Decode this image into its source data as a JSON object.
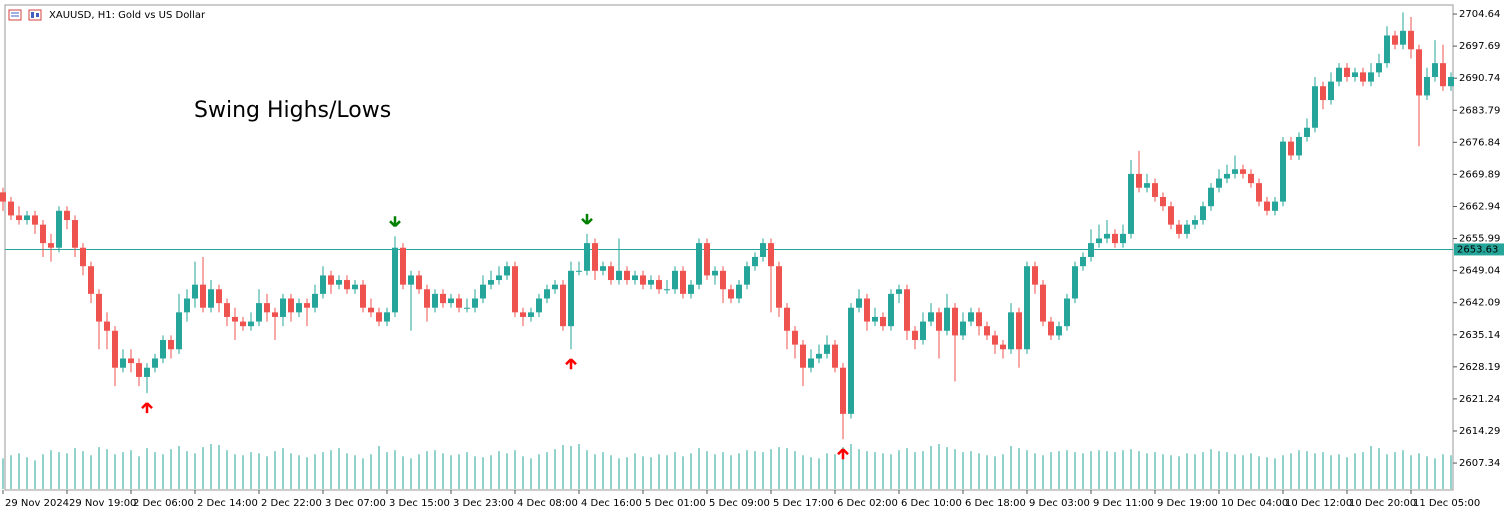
{
  "chart_data": {
    "type": "candlestick",
    "title": "XAUUSD, H1:  Gold vs US Dollar",
    "annotation": "Swing Highs/Lows",
    "bull_color": "#26a69a",
    "bear_color": "#ef5350",
    "volume_color": "#26a69a",
    "swing_high_color": "#008000",
    "swing_low_color": "#ff0000",
    "annotation_color": "#1414ff",
    "price_line": {
      "value": 2653.63,
      "label": "2653.63",
      "color": "#26a69a"
    },
    "ylim": [
      2601.5,
      2706.6
    ],
    "yticks": [
      2704.64,
      2697.69,
      2690.74,
      2683.79,
      2676.84,
      2669.89,
      2662.94,
      2655.99,
      2649.04,
      2642.09,
      2635.14,
      2628.19,
      2621.24,
      2614.29,
      2607.34
    ],
    "categories": [
      "29 Nov 2024",
      null,
      null,
      null,
      null,
      null,
      null,
      null,
      "29 Nov 19:00",
      null,
      null,
      null,
      null,
      null,
      null,
      null,
      "2 Dec 06:00",
      null,
      null,
      null,
      null,
      null,
      null,
      null,
      "2 Dec 14:00",
      null,
      null,
      null,
      null,
      null,
      null,
      null,
      "2 Dec 22:00",
      null,
      null,
      null,
      null,
      null,
      null,
      null,
      "3 Dec 07:00",
      null,
      null,
      null,
      null,
      null,
      null,
      null,
      "3 Dec 15:00",
      null,
      null,
      null,
      null,
      null,
      null,
      null,
      "3 Dec 23:00",
      null,
      null,
      null,
      null,
      null,
      null,
      null,
      "4 Dec 08:00",
      null,
      null,
      null,
      null,
      null,
      null,
      null,
      "4 Dec 16:00",
      null,
      null,
      null,
      null,
      null,
      null,
      null,
      "5 Dec 01:00",
      null,
      null,
      null,
      null,
      null,
      null,
      null,
      "5 Dec 09:00",
      null,
      null,
      null,
      null,
      null,
      null,
      null,
      "5 Dec 17:00",
      null,
      null,
      null,
      null,
      null,
      null,
      null,
      "6 Dec 02:00",
      null,
      null,
      null,
      null,
      null,
      null,
      null,
      "6 Dec 10:00",
      null,
      null,
      null,
      null,
      null,
      null,
      null,
      "6 Dec 18:00",
      null,
      null,
      null,
      null,
      null,
      null,
      null,
      "9 Dec 03:00",
      null,
      null,
      null,
      null,
      null,
      null,
      null,
      "9 Dec 11:00",
      null,
      null,
      null,
      null,
      null,
      null,
      null,
      "9 Dec 19:00",
      null,
      null,
      null,
      null,
      null,
      null,
      null,
      "10 Dec 04:00",
      null,
      null,
      null,
      null,
      null,
      null,
      null,
      "10 Dec 12:00",
      null,
      null,
      null,
      null,
      null,
      null,
      null,
      "10 Dec 20:00",
      null,
      null,
      null,
      null,
      null,
      null,
      null,
      "11 Dec 05:00",
      null,
      null,
      null,
      null,
      null
    ],
    "open": [
      2666,
      2664,
      2661,
      2660,
      2661,
      2659,
      2655,
      2654,
      2662,
      2660,
      2654,
      2650,
      2644,
      2638,
      2636,
      2628,
      2630,
      2629,
      2626,
      2628,
      2630,
      2634,
      2632,
      2640,
      2643,
      2646,
      2641,
      2645,
      2642,
      2639,
      2638,
      2637,
      2638,
      2642,
      2640,
      2639,
      2643,
      2640,
      2642,
      2641,
      2644,
      2648,
      2646,
      2647,
      2645,
      2646,
      2641,
      2640,
      2638,
      2640,
      2654,
      2646,
      2648,
      2645,
      2641,
      2644,
      2642,
      2643,
      2641,
      2641,
      2643,
      2646,
      2647,
      2648,
      2650,
      2640,
      2639,
      2640,
      2643,
      2645,
      2646,
      2637,
      2649,
      2649,
      2655,
      2649,
      2650,
      2647,
      2649,
      2647,
      2648,
      2646,
      2647,
      2645,
      2645,
      2649,
      2644,
      2646,
      2655,
      2648,
      2649,
      2645,
      2643,
      2646,
      2650,
      2652,
      2655,
      2650,
      2641,
      2636,
      2633,
      2628,
      2630,
      2631,
      2633,
      2628,
      2618,
      2641,
      2643,
      2638,
      2639,
      2637,
      2644,
      2645,
      2636,
      2634,
      2638,
      2640,
      2636,
      2641,
      2635,
      2638,
      2640,
      2637,
      2635,
      2633,
      2632,
      2640,
      2632,
      2650,
      2646,
      2638,
      2635,
      2637,
      2643,
      2650,
      2652,
      2655,
      2656,
      2657,
      2655,
      2657,
      2670,
      2667,
      2668,
      2665,
      2663,
      2659,
      2657,
      2659,
      2660,
      2663,
      2667,
      2669,
      2670,
      2671,
      2670,
      2668,
      2664,
      2662,
      2664,
      2677,
      2674,
      2678,
      2680,
      2689,
      2686,
      2690,
      2693,
      2691,
      2692,
      2690,
      2692,
      2694,
      2700,
      2698,
      2701,
      2697,
      2687,
      2691,
      2694,
      2689
    ],
    "high": [
      2667,
      2665,
      2663,
      2662,
      2662,
      2660,
      2657,
      2663,
      2663,
      2661,
      2655,
      2651,
      2645,
      2640,
      2637,
      2632,
      2632,
      2630,
      2629,
      2631,
      2635,
      2635,
      2644,
      2645,
      2651,
      2652,
      2647,
      2646,
      2643,
      2641,
      2639,
      2640,
      2645,
      2644,
      2641,
      2644,
      2644,
      2643,
      2643,
      2646,
      2650,
      2649,
      2648,
      2648,
      2647,
      2647,
      2643,
      2641,
      2641,
      2656.5,
      2655,
      2649,
      2649,
      2646,
      2645,
      2645,
      2644,
      2644,
      2643,
      2645,
      2648,
      2649,
      2650,
      2651,
      2651,
      2641,
      2641,
      2644,
      2646,
      2647,
      2647,
      2651,
      2651,
      2657,
      2656,
      2651,
      2651,
      2656,
      2650,
      2649,
      2649,
      2648,
      2648,
      2647,
      2650,
      2650,
      2647,
      2656,
      2656,
      2650,
      2650,
      2646,
      2647,
      2651,
      2653,
      2656,
      2656,
      2651,
      2642,
      2637,
      2634,
      2632,
      2633,
      2635,
      2634,
      2629,
      2642,
      2645,
      2644,
      2641,
      2640,
      2645,
      2646,
      2646,
      2637,
      2640,
      2642,
      2641,
      2644,
      2642,
      2640,
      2641,
      2641,
      2638,
      2636,
      2634,
      2642,
      2641,
      2651,
      2651,
      2647,
      2639,
      2638,
      2644,
      2651,
      2653,
      2658,
      2659,
      2660,
      2658,
      2659,
      2673,
      2675,
      2670,
      2669,
      2666,
      2664,
      2660,
      2660,
      2661,
      2664,
      2668,
      2671,
      2672,
      2674,
      2672,
      2671,
      2669,
      2665,
      2665,
      2678,
      2678,
      2679,
      2682,
      2691,
      2690,
      2692,
      2694,
      2694,
      2693,
      2693,
      2694,
      2696,
      2702,
      2701,
      2705,
      2704,
      2698,
      2693,
      2699,
      2698,
      2692
    ],
    "low": [
      2662,
      2660,
      2659,
      2659,
      2657,
      2652,
      2651,
      2653,
      2658,
      2652,
      2648,
      2642,
      2632,
      2632,
      2624,
      2627,
      2627,
      2624,
      2622.5,
      2627,
      2629,
      2630,
      2631,
      2638,
      2641,
      2640,
      2640,
      2640,
      2637,
      2634,
      2636,
      2636,
      2637,
      2638,
      2634,
      2637,
      2638,
      2639,
      2637,
      2640,
      2643,
      2644,
      2645,
      2644,
      2644,
      2640,
      2639,
      2637,
      2637,
      2639,
      2645,
      2636,
      2644,
      2638,
      2640,
      2641,
      2641,
      2640,
      2640,
      2640,
      2642,
      2645,
      2646,
      2647,
      2639,
      2637,
      2638,
      2639,
      2642,
      2644,
      2636,
      2632,
      2648,
      2648,
      2647,
      2648,
      2646,
      2646,
      2646,
      2646,
      2645,
      2645,
      2644,
      2644,
      2644,
      2643,
      2643,
      2645,
      2647,
      2646,
      2642,
      2642,
      2642,
      2645,
      2649,
      2651,
      2640,
      2639,
      2632,
      2630,
      2624,
      2627,
      2629,
      2630,
      2627,
      2612.5,
      2617,
      2640,
      2636,
      2637,
      2636,
      2636,
      2642,
      2634,
      2632,
      2633,
      2637,
      2630,
      2635,
      2625,
      2634,
      2637,
      2635,
      2634,
      2631,
      2630,
      2631,
      2628,
      2631,
      2644,
      2637,
      2634,
      2634,
      2636,
      2642,
      2649,
      2651,
      2654,
      2655,
      2654,
      2654,
      2656,
      2666,
      2666,
      2664,
      2662,
      2658,
      2656,
      2656,
      2658,
      2659,
      2662,
      2666,
      2668,
      2669,
      2669,
      2667,
      2663,
      2661,
      2661,
      2663,
      2673,
      2673,
      2677,
      2679,
      2684,
      2685,
      2689,
      2690,
      2690,
      2689,
      2689,
      2691,
      2693,
      2697,
      2697,
      2695,
      2676,
      2686,
      2690,
      2688,
      2688
    ],
    "close": [
      2664,
      2661,
      2660,
      2661,
      2659,
      2655,
      2654,
      2662,
      2660,
      2654,
      2650,
      2644,
      2638,
      2636,
      2628,
      2630,
      2629,
      2626,
      2628,
      2630,
      2634,
      2632,
      2640,
      2643,
      2646,
      2641,
      2645,
      2642,
      2639,
      2638,
      2637,
      2638,
      2642,
      2640,
      2639,
      2643,
      2640,
      2642,
      2641,
      2644,
      2648,
      2646,
      2647,
      2645,
      2646,
      2641,
      2640,
      2638,
      2640,
      2654,
      2646,
      2648,
      2645,
      2641,
      2644,
      2642,
      2643,
      2641,
      2641,
      2643,
      2646,
      2647,
      2648,
      2650,
      2640,
      2639,
      2640,
      2643,
      2645,
      2646,
      2637,
      2649,
      2649,
      2655,
      2649,
      2650,
      2647,
      2649,
      2647,
      2648,
      2646,
      2647,
      2645,
      2645,
      2649,
      2644,
      2646,
      2655,
      2648,
      2649,
      2645,
      2643,
      2646,
      2650,
      2652,
      2655,
      2650,
      2641,
      2636,
      2633,
      2628,
      2630,
      2631,
      2633,
      2628,
      2618,
      2641,
      2643,
      2638,
      2639,
      2637,
      2644,
      2645,
      2636,
      2634,
      2638,
      2640,
      2636,
      2641,
      2635,
      2638,
      2640,
      2637,
      2635,
      2633,
      2632,
      2640,
      2632,
      2650,
      2646,
      2638,
      2635,
      2637,
      2643,
      2650,
      2652,
      2655,
      2656,
      2657,
      2655,
      2657,
      2670,
      2667,
      2668,
      2665,
      2663,
      2659,
      2657,
      2659,
      2660,
      2663,
      2667,
      2669,
      2670,
      2671,
      2670,
      2668,
      2664,
      2662,
      2664,
      2677,
      2674,
      2678,
      2680,
      2689,
      2686,
      2690,
      2693,
      2691,
      2692,
      2690,
      2692,
      2694,
      2700,
      2698,
      2701,
      2697,
      2687,
      2691,
      2694,
      2689,
      2691
    ],
    "volume": [
      30,
      33,
      35,
      31,
      28,
      34,
      38,
      36,
      35,
      40,
      37,
      33,
      41,
      39,
      34,
      36,
      38,
      32,
      40,
      36,
      34,
      39,
      42,
      37,
      35,
      41,
      44,
      43,
      38,
      34,
      33,
      36,
      35,
      32,
      37,
      40,
      35,
      33,
      31,
      34,
      36,
      38,
      40,
      35,
      33,
      30,
      34,
      42,
      36,
      38,
      32,
      30,
      34,
      37,
      38,
      35,
      33,
      34,
      36,
      32,
      31,
      33,
      37,
      35,
      38,
      32,
      30,
      34,
      36,
      39,
      43,
      42,
      44,
      38,
      34,
      36,
      33,
      30,
      31,
      35,
      32,
      31,
      34,
      33,
      36,
      32,
      35,
      40,
      37,
      34,
      36,
      33,
      35,
      38,
      37,
      36,
      39,
      41,
      40,
      37,
      33,
      31,
      30,
      35,
      34,
      41,
      44,
      39,
      37,
      36,
      35,
      34,
      38,
      40,
      36,
      37,
      42,
      44,
      41,
      39,
      36,
      37,
      35,
      33,
      32,
      34,
      42,
      40,
      38,
      35,
      33,
      36,
      37,
      38,
      36,
      35,
      37,
      38,
      37,
      36,
      38,
      39,
      37,
      35,
      36,
      34,
      33,
      32,
      35,
      34,
      36,
      39,
      37,
      36,
      34,
      33,
      35,
      32,
      31,
      30,
      33,
      35,
      38,
      37,
      35,
      36,
      33,
      34,
      31,
      35,
      36,
      42,
      40,
      34,
      36,
      38,
      33,
      35,
      32,
      30,
      34,
      33
    ],
    "swing_highs": [
      49,
      73
    ],
    "swing_lows": [
      18,
      71,
      105
    ]
  }
}
